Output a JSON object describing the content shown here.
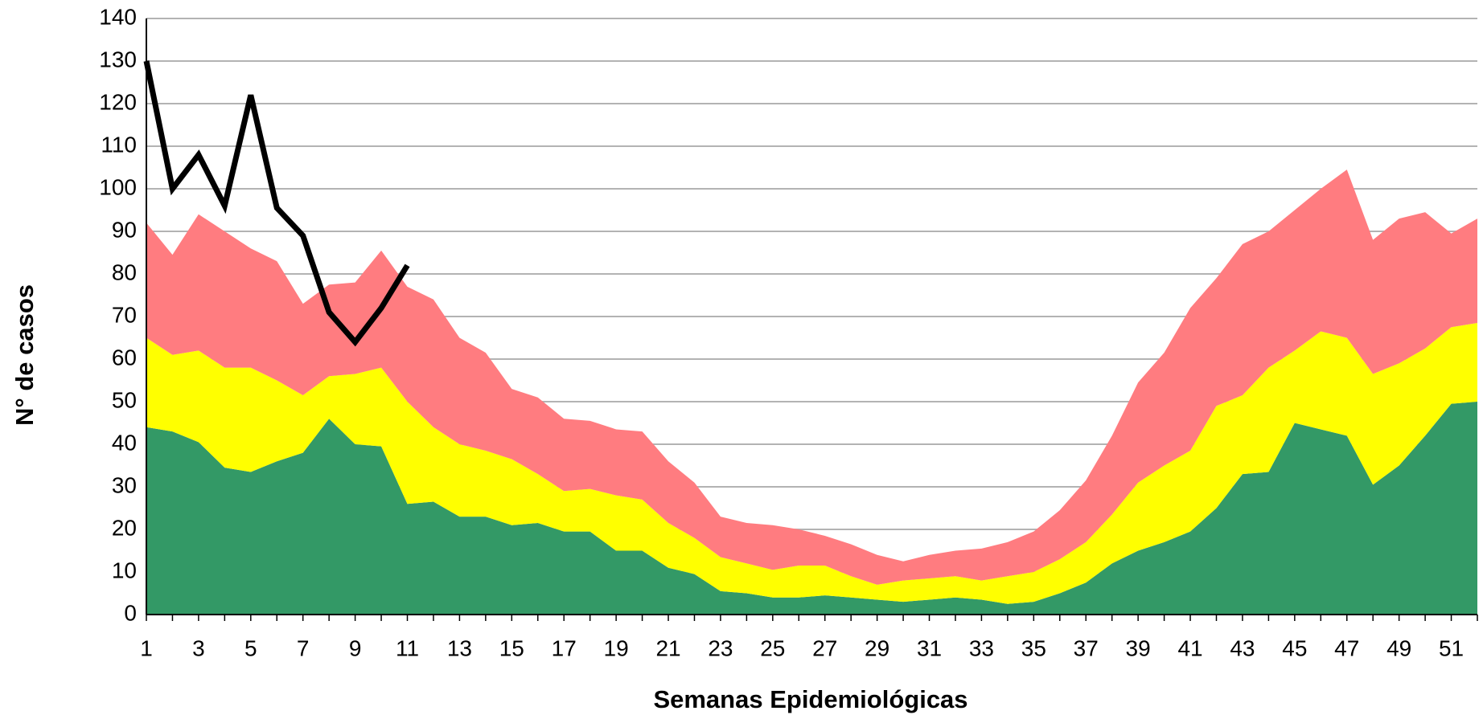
{
  "chart_data": {
    "type": "stacked-area-line",
    "xlabel": "Semanas Epidemiológicas",
    "ylabel": "N° de casos",
    "categories": [
      1,
      null,
      3,
      null,
      5,
      null,
      7,
      null,
      9,
      null,
      11,
      null,
      13,
      null,
      15,
      null,
      17,
      null,
      19,
      null,
      21,
      null,
      23,
      null,
      25,
      null,
      27,
      null,
      29,
      null,
      31,
      null,
      33,
      null,
      35,
      null,
      37,
      null,
      39,
      null,
      41,
      null,
      43,
      null,
      45,
      null,
      47,
      null,
      49,
      null,
      51,
      null
    ],
    "ylim": [
      0,
      140
    ],
    "yticks": [
      0,
      10,
      20,
      30,
      40,
      50,
      60,
      70,
      80,
      90,
      100,
      110,
      120,
      130,
      140
    ],
    "grid": true,
    "series": [
      {
        "type": "area",
        "color": "#339966",
        "values": [
          44,
          43,
          40.5,
          34.5,
          33.5,
          36,
          38,
          46,
          40,
          39.5,
          26,
          26.5,
          23,
          23,
          21,
          21.5,
          19.5,
          19.5,
          15,
          15,
          11,
          9.5,
          5.5,
          5,
          4,
          4,
          4.5,
          4,
          3.5,
          3,
          3.5,
          4,
          3.5,
          2.5,
          3,
          5,
          7.5,
          12,
          15,
          17,
          19.5,
          25,
          33,
          33.5,
          45,
          43.5,
          42,
          30.5,
          35,
          42,
          49.5,
          50
        ]
      },
      {
        "type": "area",
        "color": "#ffff00",
        "values": [
          21,
          18,
          21.5,
          23.5,
          24.5,
          19,
          13.5,
          10,
          16.5,
          18.5,
          24,
          17.5,
          17,
          15.5,
          15.5,
          11.5,
          9.5,
          10,
          13,
          12,
          10.5,
          8.5,
          8,
          7,
          6.5,
          7.5,
          7,
          5,
          3.5,
          5,
          5,
          5,
          4.5,
          6.5,
          7,
          8,
          9.5,
          11.5,
          16,
          18,
          19,
          24,
          18.5,
          24.5,
          17,
          23,
          23,
          26,
          24,
          20.5,
          18,
          18.5
        ]
      },
      {
        "type": "area",
        "color": "#ff7c80",
        "values": [
          27,
          23.5,
          32,
          32,
          28,
          28,
          21.5,
          21.5,
          21.5,
          27.5,
          27,
          30,
          25,
          23,
          16.5,
          18,
          17,
          16,
          15.5,
          16,
          14.5,
          13,
          9.5,
          9.5,
          10.5,
          8.5,
          7,
          7.5,
          7,
          4.5,
          5.5,
          6,
          7.5,
          8,
          9.5,
          11.5,
          14.5,
          18.5,
          23.5,
          26.5,
          33.5,
          30,
          35.5,
          32,
          33,
          33.5,
          39.5,
          31.5,
          34,
          32,
          22,
          24.5
        ]
      },
      {
        "type": "line",
        "color": "#000000",
        "values": [
          130,
          100,
          108,
          96,
          122,
          95.5,
          89,
          71,
          64,
          72,
          82,
          null,
          null,
          null,
          null,
          null,
          null,
          null,
          null,
          null,
          null,
          null,
          null,
          null,
          null,
          null,
          null,
          null,
          null,
          null,
          null,
          null,
          null,
          null,
          null,
          null,
          null,
          null,
          null,
          null,
          null,
          null,
          null,
          null,
          null,
          null,
          null,
          null,
          null,
          null,
          null,
          null
        ]
      }
    ]
  }
}
